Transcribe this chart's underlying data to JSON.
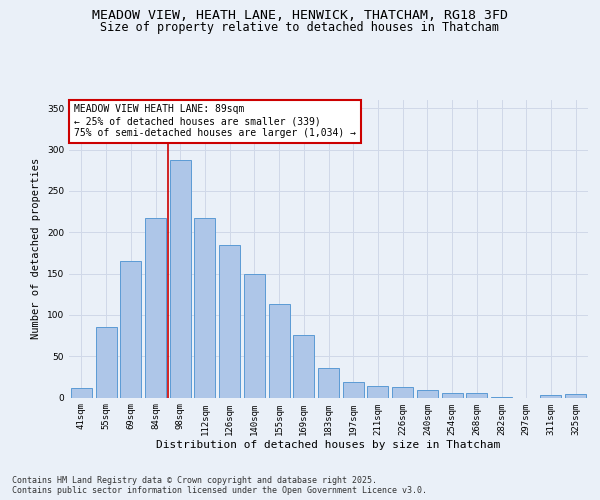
{
  "title_line1": "MEADOW VIEW, HEATH LANE, HENWICK, THATCHAM, RG18 3FD",
  "title_line2": "Size of property relative to detached houses in Thatcham",
  "xlabel": "Distribution of detached houses by size in Thatcham",
  "ylabel": "Number of detached properties",
  "categories": [
    "41sqm",
    "55sqm",
    "69sqm",
    "84sqm",
    "98sqm",
    "112sqm",
    "126sqm",
    "140sqm",
    "155sqm",
    "169sqm",
    "183sqm",
    "197sqm",
    "211sqm",
    "226sqm",
    "240sqm",
    "254sqm",
    "268sqm",
    "282sqm",
    "297sqm",
    "311sqm",
    "325sqm"
  ],
  "values": [
    11,
    85,
    165,
    217,
    287,
    217,
    185,
    150,
    113,
    76,
    36,
    19,
    14,
    13,
    9,
    5,
    6,
    1,
    0,
    3,
    4
  ],
  "bar_color": "#aec6e8",
  "bar_edge_color": "#5b9bd5",
  "vline_x": 3.5,
  "vline_color": "#cc0000",
  "annotation_text": "MEADOW VIEW HEATH LANE: 89sqm\n← 25% of detached houses are smaller (339)\n75% of semi-detached houses are larger (1,034) →",
  "annotation_box_color": "#ffffff",
  "annotation_box_edge": "#cc0000",
  "ylim": [
    0,
    360
  ],
  "yticks": [
    0,
    50,
    100,
    150,
    200,
    250,
    300,
    350
  ],
  "grid_color": "#d0d8e8",
  "background_color": "#eaf0f8",
  "footer_text": "Contains HM Land Registry data © Crown copyright and database right 2025.\nContains public sector information licensed under the Open Government Licence v3.0.",
  "title1_fontsize": 9.5,
  "title2_fontsize": 8.5,
  "xlabel_fontsize": 8,
  "ylabel_fontsize": 7.5,
  "tick_fontsize": 6.5,
  "annotation_fontsize": 7,
  "footer_fontsize": 6
}
